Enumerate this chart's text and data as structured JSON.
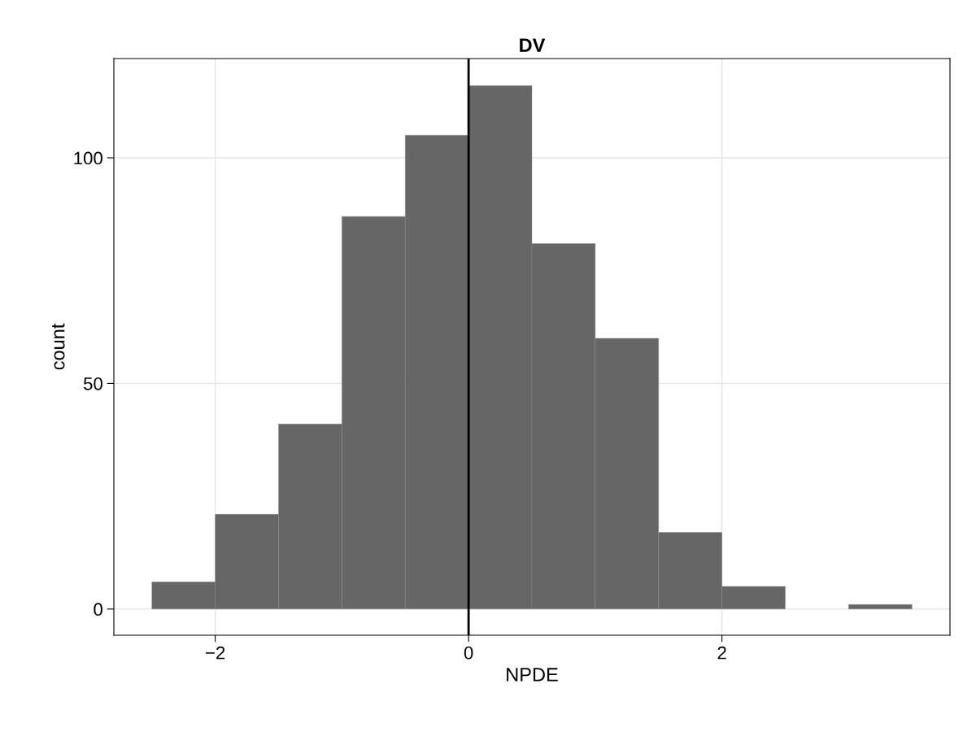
{
  "chart_data": {
    "type": "histogram",
    "title": "DV",
    "xlabel": "NPDE",
    "ylabel": "count",
    "bins": [
      -2.5,
      -2.0,
      -1.5,
      -1.0,
      -0.5,
      0.0,
      0.5,
      1.0,
      1.5,
      2.0,
      2.5,
      3.0,
      3.5
    ],
    "values": [
      6,
      21,
      41,
      87,
      105,
      116,
      81,
      60,
      17,
      5,
      0,
      1
    ],
    "color": "#666666",
    "xlim": [
      -2.8,
      3.8
    ],
    "xticks": [
      {
        "value": -2,
        "label": "−2"
      },
      0,
      2
    ],
    "ylim": [
      -5.8,
      122
    ],
    "yticks": [
      0,
      50,
      100
    ],
    "grid": true,
    "ref_lines": [
      {
        "axis": "x",
        "value": 0,
        "color": "#000000"
      }
    ]
  }
}
